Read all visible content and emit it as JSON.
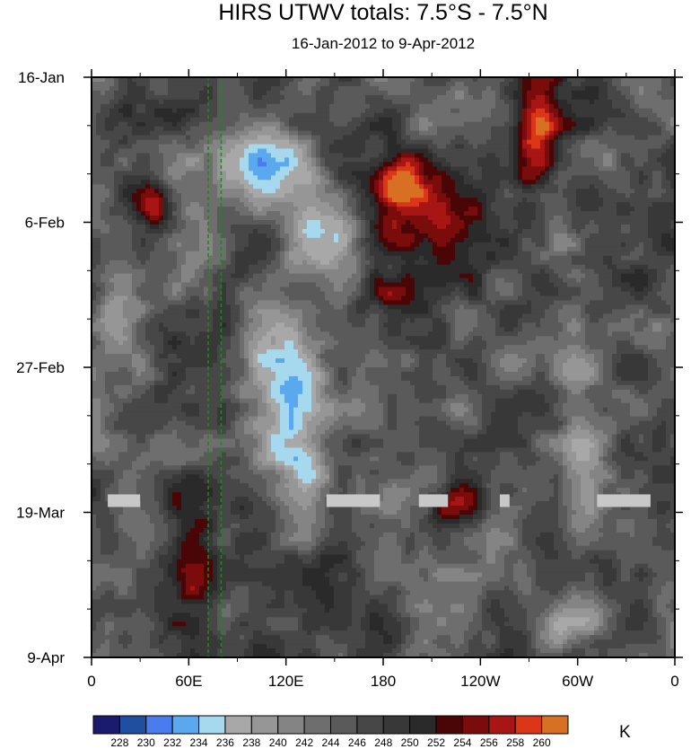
{
  "chart_data": {
    "type": "heatmap",
    "title": "HIRS UTWV totals: 7.5°S - 7.5°N",
    "subtitle": "16-Jan-2012 to 9-Apr-2012",
    "units": "K",
    "x_axis": {
      "ticks": [
        "0",
        "60E",
        "120E",
        "180",
        "120W",
        "60W",
        "0"
      ],
      "range": [
        0,
        360
      ]
    },
    "y_axis": {
      "ticks": [
        "16-Jan",
        "6-Feb",
        "27-Feb",
        "19-Mar",
        "9-Apr"
      ],
      "range": [
        "16-Jan-2012",
        "9-Apr-2012"
      ],
      "direction": "time increases downward"
    },
    "colorbar": {
      "levels": [
        "228",
        "230",
        "232",
        "234",
        "236",
        "238",
        "240",
        "242",
        "244",
        "246",
        "248",
        "250",
        "252",
        "254",
        "256",
        "258",
        "260"
      ],
      "colors": [
        "#1a1a6e",
        "#1f4fa0",
        "#4a7cf0",
        "#5aa8ee",
        "#a6d8ee",
        "#a8a8a8",
        "#969696",
        "#848484",
        "#6e6e6e",
        "#5a5a5a",
        "#474747",
        "#383838",
        "#2a2a2a",
        "#4a0606",
        "#7a0c0c",
        "#a81515",
        "#dc3618",
        "#d77022"
      ]
    },
    "reference_lines": {
      "style": "dashed",
      "color": "#1a8a1a",
      "longitudes_deg_east": [
        72,
        80
      ]
    },
    "missing_data_color": "#c8c8c8",
    "missing_data_segments": [
      {
        "date": "19-Mar",
        "lon_from": 10,
        "lon_to": 30
      },
      {
        "date": "19-Mar",
        "lon_from": 145,
        "lon_to": 178
      },
      {
        "date": "19-Mar",
        "lon_from": 202,
        "lon_to": 220
      },
      {
        "date": "19-Mar",
        "lon_from": 252,
        "lon_to": 258
      },
      {
        "date": "19-Mar",
        "lon_from": 312,
        "lon_to": 345
      }
    ]
  }
}
